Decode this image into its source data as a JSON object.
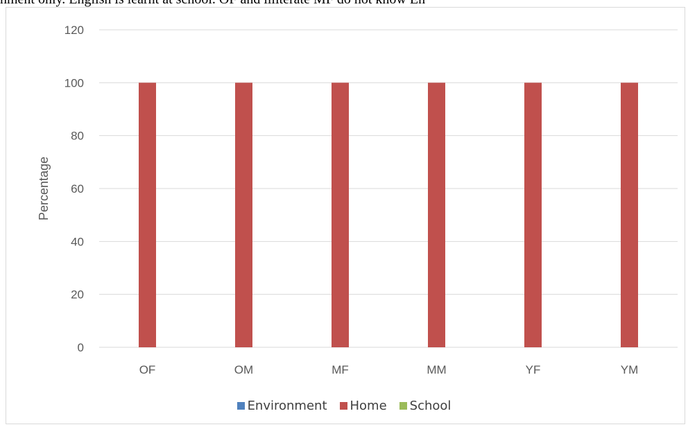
{
  "caption_fragment": "nment only. English is learnt at school. OF and illiterate MF do not know En",
  "chart_data": {
    "type": "bar",
    "title": "",
    "xlabel": "",
    "ylabel": "Percentage",
    "ylim": [
      0,
      120
    ],
    "yticks": [
      0,
      20,
      40,
      60,
      80,
      100,
      120
    ],
    "categories": [
      "OF",
      "OM",
      "MF",
      "MM",
      "YF",
      "YM"
    ],
    "series": [
      {
        "name": "Environment",
        "color": "#4f81bd",
        "values": [
          0,
          0,
          0,
          0,
          0,
          0
        ]
      },
      {
        "name": "Home",
        "color": "#c0504d",
        "values": [
          100,
          100,
          100,
          100,
          100,
          100
        ]
      },
      {
        "name": "School",
        "color": "#9bbb59",
        "values": [
          0,
          0,
          0,
          0,
          0,
          0
        ]
      }
    ],
    "grid": true,
    "legend_position": "bottom"
  }
}
